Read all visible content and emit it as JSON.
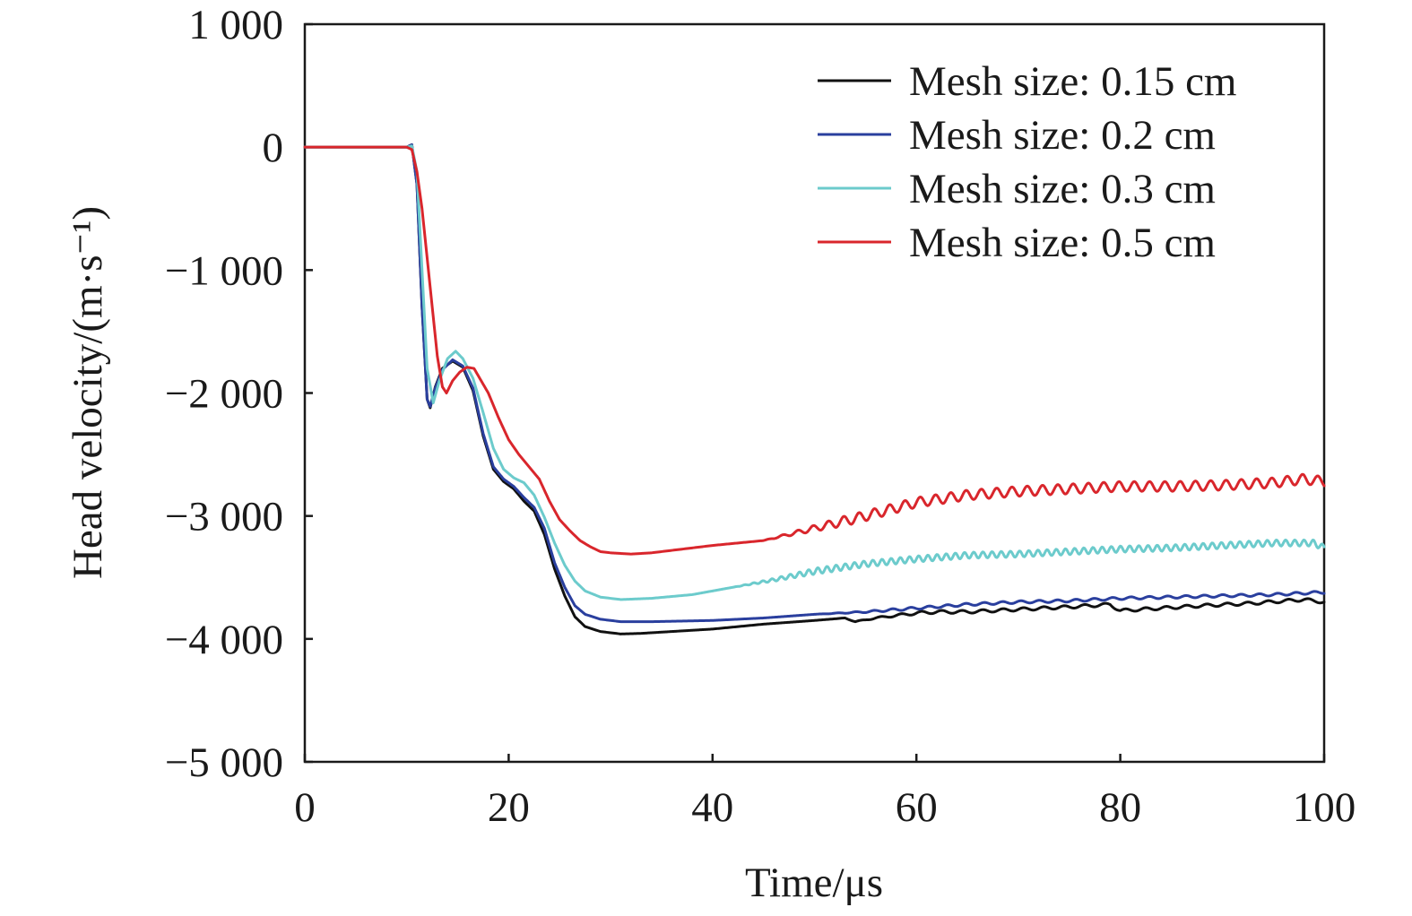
{
  "chart_data": {
    "type": "line",
    "xlabel": "Time/μs",
    "ylabel": "Head velocity/(m·s⁻¹)",
    "xlim": [
      0,
      100
    ],
    "ylim": [
      -5000,
      1000
    ],
    "x_ticks": [
      0,
      20,
      40,
      60,
      80,
      100
    ],
    "x_tick_labels": [
      "0",
      "20",
      "40",
      "60",
      "80",
      "100"
    ],
    "y_ticks": [
      1000,
      0,
      -1000,
      -2000,
      -3000,
      -4000,
      -5000
    ],
    "y_tick_labels": [
      "1 000",
      "0",
      "−1 000",
      "−2 000",
      "−3 000",
      "−4 000",
      "−5 000"
    ],
    "grid": false,
    "legend_position": "top-right",
    "series": [
      {
        "name": "Mesh size: 0.15 cm",
        "color": "#111111",
        "oscillation": {
          "amplitude": 12,
          "period": 2.0,
          "start": 52
        },
        "points": [
          [
            0,
            0
          ],
          [
            10,
            0
          ],
          [
            10.5,
            20
          ],
          [
            11,
            -300
          ],
          [
            11.5,
            -1300
          ],
          [
            12,
            -2050
          ],
          [
            12.3,
            -2120
          ],
          [
            12.8,
            -1950
          ],
          [
            13.5,
            -1800
          ],
          [
            14.5,
            -1740
          ],
          [
            15.5,
            -1790
          ],
          [
            16.5,
            -1980
          ],
          [
            17.5,
            -2350
          ],
          [
            18.5,
            -2620
          ],
          [
            19.5,
            -2720
          ],
          [
            20.5,
            -2780
          ],
          [
            21.5,
            -2880
          ],
          [
            22.5,
            -2960
          ],
          [
            23.5,
            -3150
          ],
          [
            24.5,
            -3430
          ],
          [
            25.5,
            -3650
          ],
          [
            26.5,
            -3820
          ],
          [
            27.5,
            -3900
          ],
          [
            29,
            -3940
          ],
          [
            31,
            -3960
          ],
          [
            33,
            -3955
          ],
          [
            36,
            -3940
          ],
          [
            40,
            -3920
          ],
          [
            45,
            -3880
          ],
          [
            50,
            -3850
          ],
          [
            53,
            -3830
          ],
          [
            54,
            -3860
          ],
          [
            56,
            -3830
          ],
          [
            60,
            -3790
          ],
          [
            62,
            -3780
          ],
          [
            65,
            -3780
          ],
          [
            70,
            -3760
          ],
          [
            75,
            -3740
          ],
          [
            79,
            -3720
          ],
          [
            80,
            -3770
          ],
          [
            84,
            -3750
          ],
          [
            88,
            -3730
          ],
          [
            93,
            -3710
          ],
          [
            98,
            -3680
          ],
          [
            100,
            -3700
          ]
        ]
      },
      {
        "name": "Mesh size: 0.2 cm",
        "color": "#2a3f9e",
        "oscillation": {
          "amplitude": 10,
          "period": 1.8,
          "start": 50
        },
        "points": [
          [
            0,
            0
          ],
          [
            10,
            0
          ],
          [
            10.5,
            20
          ],
          [
            11,
            -300
          ],
          [
            11.5,
            -1300
          ],
          [
            12,
            -2050
          ],
          [
            12.3,
            -2110
          ],
          [
            12.8,
            -1960
          ],
          [
            13.5,
            -1810
          ],
          [
            14.5,
            -1730
          ],
          [
            15.5,
            -1780
          ],
          [
            16.5,
            -1960
          ],
          [
            17.5,
            -2330
          ],
          [
            18.5,
            -2600
          ],
          [
            19.5,
            -2700
          ],
          [
            20.5,
            -2760
          ],
          [
            21.5,
            -2850
          ],
          [
            22.5,
            -2930
          ],
          [
            23.5,
            -3100
          ],
          [
            24.5,
            -3380
          ],
          [
            25.5,
            -3580
          ],
          [
            26.5,
            -3730
          ],
          [
            27.5,
            -3800
          ],
          [
            29,
            -3840
          ],
          [
            31,
            -3860
          ],
          [
            34,
            -3860
          ],
          [
            40,
            -3850
          ],
          [
            45,
            -3830
          ],
          [
            50,
            -3800
          ],
          [
            55,
            -3780
          ],
          [
            60,
            -3750
          ],
          [
            65,
            -3720
          ],
          [
            70,
            -3700
          ],
          [
            75,
            -3690
          ],
          [
            80,
            -3670
          ],
          [
            85,
            -3660
          ],
          [
            90,
            -3650
          ],
          [
            95,
            -3640
          ],
          [
            100,
            -3620
          ]
        ]
      },
      {
        "name": "Mesh size: 0.3 cm",
        "color": "#6ccbcc",
        "oscillation": {
          "amplitude": 25,
          "period": 0.9,
          "start": 42
        },
        "points": [
          [
            0,
            0
          ],
          [
            10,
            0
          ],
          [
            10.5,
            10
          ],
          [
            11,
            -200
          ],
          [
            11.5,
            -1000
          ],
          [
            12,
            -1800
          ],
          [
            12.6,
            -2080
          ],
          [
            13.2,
            -1900
          ],
          [
            14,
            -1720
          ],
          [
            14.8,
            -1660
          ],
          [
            15.5,
            -1720
          ],
          [
            16.5,
            -1880
          ],
          [
            17.5,
            -2160
          ],
          [
            18.5,
            -2450
          ],
          [
            19.5,
            -2620
          ],
          [
            20.5,
            -2690
          ],
          [
            21.5,
            -2730
          ],
          [
            22.5,
            -2830
          ],
          [
            23.5,
            -3010
          ],
          [
            24.5,
            -3220
          ],
          [
            25.5,
            -3400
          ],
          [
            26.5,
            -3530
          ],
          [
            27.5,
            -3610
          ],
          [
            29,
            -3660
          ],
          [
            31,
            -3680
          ],
          [
            34,
            -3670
          ],
          [
            38,
            -3640
          ],
          [
            42,
            -3580
          ],
          [
            46,
            -3520
          ],
          [
            50,
            -3450
          ],
          [
            55,
            -3390
          ],
          [
            60,
            -3350
          ],
          [
            65,
            -3320
          ],
          [
            70,
            -3310
          ],
          [
            75,
            -3290
          ],
          [
            80,
            -3270
          ],
          [
            85,
            -3260
          ],
          [
            90,
            -3240
          ],
          [
            95,
            -3220
          ],
          [
            99,
            -3220
          ],
          [
            100,
            -3260
          ]
        ]
      },
      {
        "name": "Mesh size: 0.5 cm",
        "color": "#d9262c",
        "oscillation": {
          "amplitude": 40,
          "period": 1.5,
          "start": 45
        },
        "points": [
          [
            0,
            0
          ],
          [
            10,
            0
          ],
          [
            10.5,
            -20
          ],
          [
            11,
            -200
          ],
          [
            11.5,
            -500
          ],
          [
            12,
            -900
          ],
          [
            12.5,
            -1300
          ],
          [
            13,
            -1700
          ],
          [
            13.5,
            -1950
          ],
          [
            13.9,
            -2000
          ],
          [
            14.5,
            -1900
          ],
          [
            15.2,
            -1830
          ],
          [
            15.9,
            -1790
          ],
          [
            16.6,
            -1800
          ],
          [
            17.3,
            -1900
          ],
          [
            18,
            -2000
          ],
          [
            19,
            -2200
          ],
          [
            20,
            -2380
          ],
          [
            21,
            -2500
          ],
          [
            22,
            -2600
          ],
          [
            23,
            -2700
          ],
          [
            24,
            -2880
          ],
          [
            25,
            -3030
          ],
          [
            26,
            -3120
          ],
          [
            27,
            -3200
          ],
          [
            28,
            -3250
          ],
          [
            29,
            -3290
          ],
          [
            30,
            -3300
          ],
          [
            32,
            -3310
          ],
          [
            34,
            -3300
          ],
          [
            36,
            -3280
          ],
          [
            38,
            -3260
          ],
          [
            40,
            -3240
          ],
          [
            45,
            -3200
          ],
          [
            50,
            -3100
          ],
          [
            55,
            -3000
          ],
          [
            60,
            -2890
          ],
          [
            65,
            -2830
          ],
          [
            70,
            -2800
          ],
          [
            75,
            -2780
          ],
          [
            80,
            -2760
          ],
          [
            85,
            -2760
          ],
          [
            90,
            -2750
          ],
          [
            95,
            -2730
          ],
          [
            98,
            -2700
          ],
          [
            100,
            -2720
          ]
        ]
      }
    ]
  }
}
